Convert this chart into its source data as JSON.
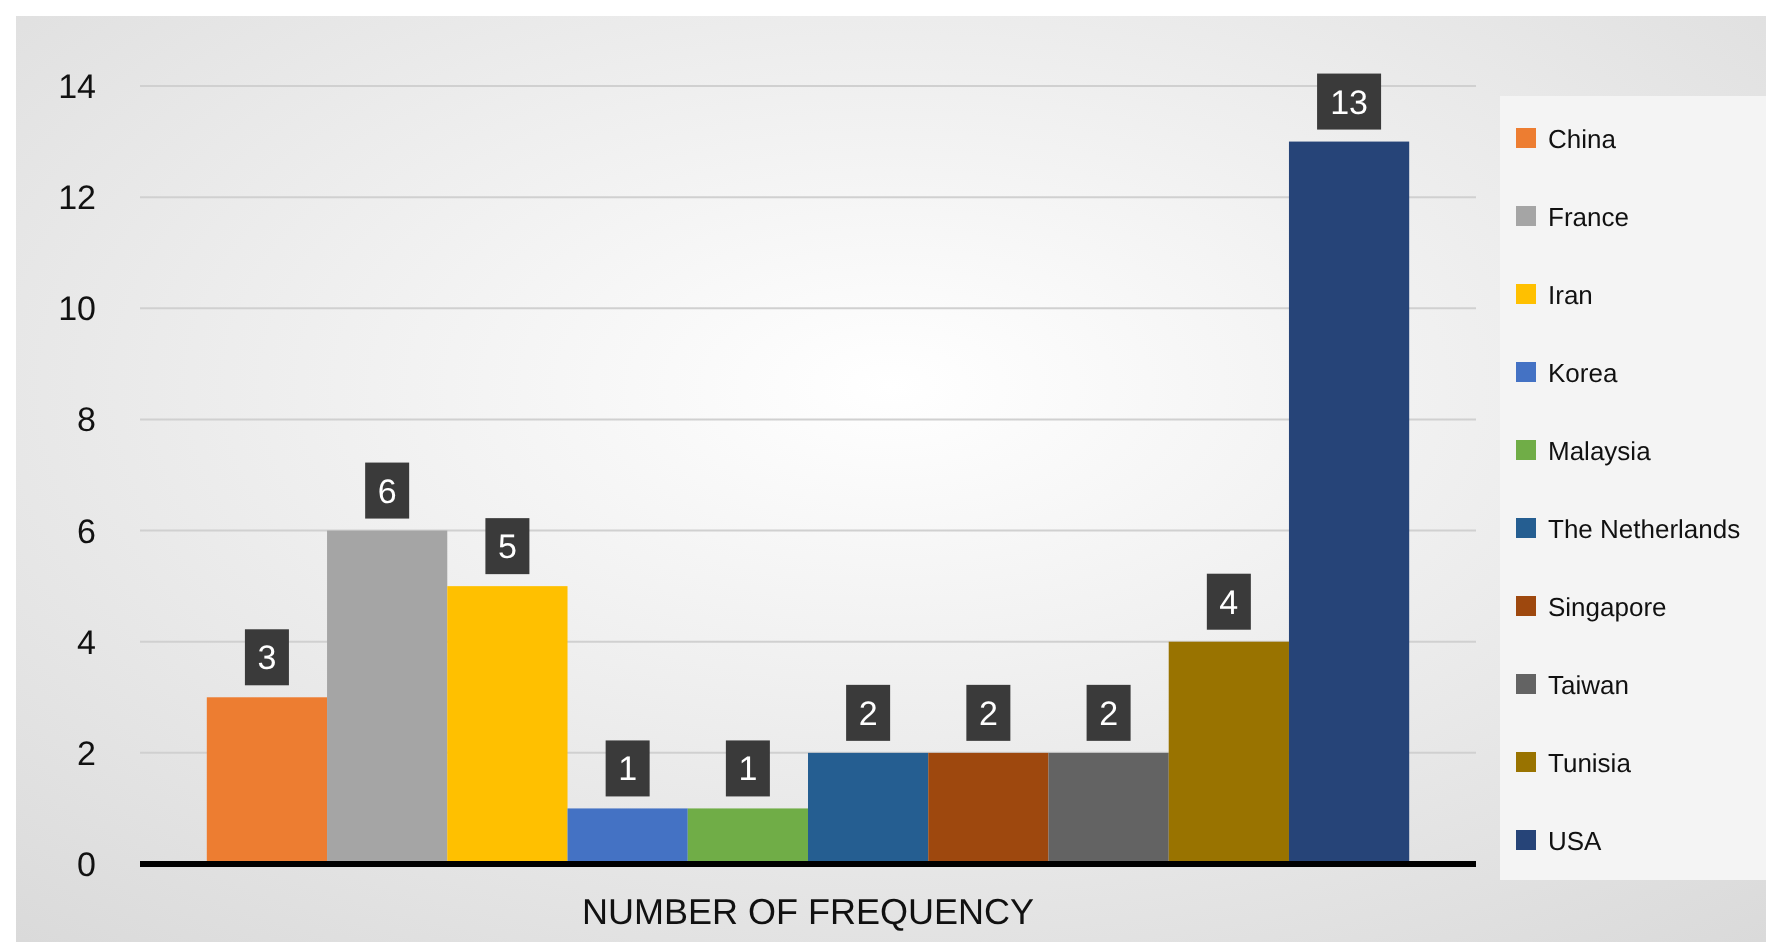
{
  "chart_data": {
    "type": "bar",
    "categories": [
      "NUMBER OF FREQUENCY"
    ],
    "series": [
      {
        "name": "China",
        "color": "#ed7d31",
        "values": [
          3
        ]
      },
      {
        "name": "France",
        "color": "#a5a5a5",
        "values": [
          6
        ]
      },
      {
        "name": "Iran",
        "color": "#ffc000",
        "values": [
          5
        ]
      },
      {
        "name": "Korea",
        "color": "#4472c4",
        "values": [
          1
        ]
      },
      {
        "name": "Malaysia",
        "color": "#70ad47",
        "values": [
          1
        ]
      },
      {
        "name": "The Netherlands",
        "color": "#255e91",
        "values": [
          2
        ]
      },
      {
        "name": "Singapore",
        "color": "#9e480e",
        "values": [
          2
        ]
      },
      {
        "name": "Taiwan",
        "color": "#636363",
        "values": [
          2
        ]
      },
      {
        "name": "Tunisia",
        "color": "#997300",
        "values": [
          4
        ]
      },
      {
        "name": "USA",
        "color": "#264478",
        "values": [
          13
        ]
      }
    ],
    "ylim": [
      0,
      14
    ],
    "yticks": [
      0,
      2,
      4,
      6,
      8,
      10,
      12,
      14
    ],
    "grid": "y",
    "legend": "right",
    "data_labels": true
  }
}
